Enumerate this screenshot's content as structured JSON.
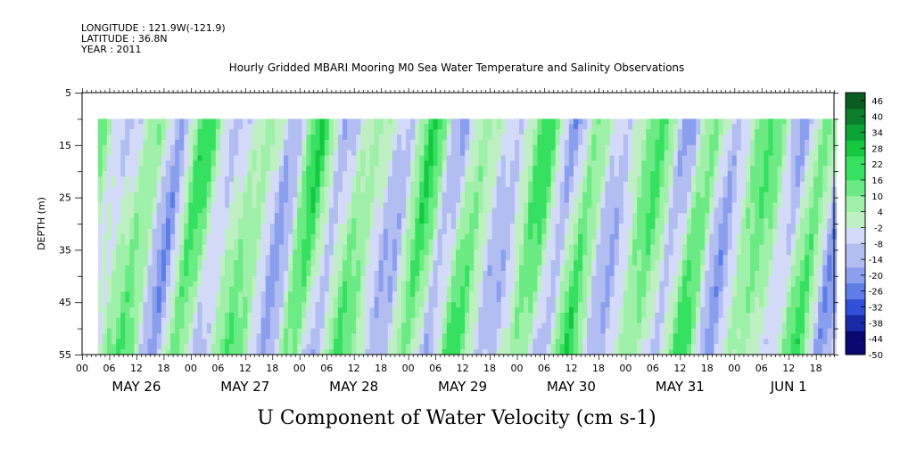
{
  "header": {
    "longitude": "LONGITUDE : 121.9W(-121.9)",
    "latitude": "LATITUDE : 36.8N",
    "year": "YEAR : 2011"
  },
  "chart_data": {
    "type": "heatmap",
    "title": "Hourly Gridded MBARI Mooring M0 Sea Water Temperature and Salinity Observations",
    "xlabel": "U Component of Water Velocity (cm s-1)",
    "ylabel": "DEPTH (m)",
    "x_hour_ticks": [
      "00",
      "06",
      "12",
      "18",
      "00",
      "06",
      "12",
      "18",
      "00",
      "06",
      "12",
      "18",
      "00",
      "06",
      "12",
      "18",
      "00",
      "06",
      "12",
      "18",
      "00",
      "06",
      "12",
      "18",
      "00",
      "06",
      "12",
      "18"
    ],
    "x_day_labels": [
      "MAY 26",
      "MAY 27",
      "MAY 28",
      "MAY 29",
      "MAY 30",
      "MAY 31",
      "JUN  1"
    ],
    "xlim_hours": [
      0,
      166
    ],
    "data_start_hour": 3.5,
    "data_end_hour": 166,
    "y_ticks": [
      "5",
      "15",
      "25",
      "35",
      "45",
      "55"
    ],
    "ylim": [
      5,
      55
    ],
    "y_inverted": true,
    "data_depth_range": [
      10,
      55
    ],
    "colorbar": {
      "labels": [
        "46",
        "40",
        "34",
        "28",
        "22",
        "16",
        "10",
        "4",
        "-2",
        "-8",
        "-14",
        "-20",
        "-26",
        "-32",
        "-38",
        "-44",
        "-50"
      ],
      "range": [
        -50,
        49
      ],
      "step": 3,
      "colors_low_to_high": [
        "#080870",
        "#1a2aa8",
        "#3050d8",
        "#5f7de8",
        "#8a9fee",
        "#b2bdf2",
        "#d3dbf8",
        "#bff0c4",
        "#9ff0a8",
        "#6ceb84",
        "#36e060",
        "#14c93f",
        "#0ca434",
        "#0a7e2a",
        "#0a5c20"
      ]
    },
    "velocity_field_note_cm_s": {
      "min": -30,
      "max": 30
    }
  }
}
